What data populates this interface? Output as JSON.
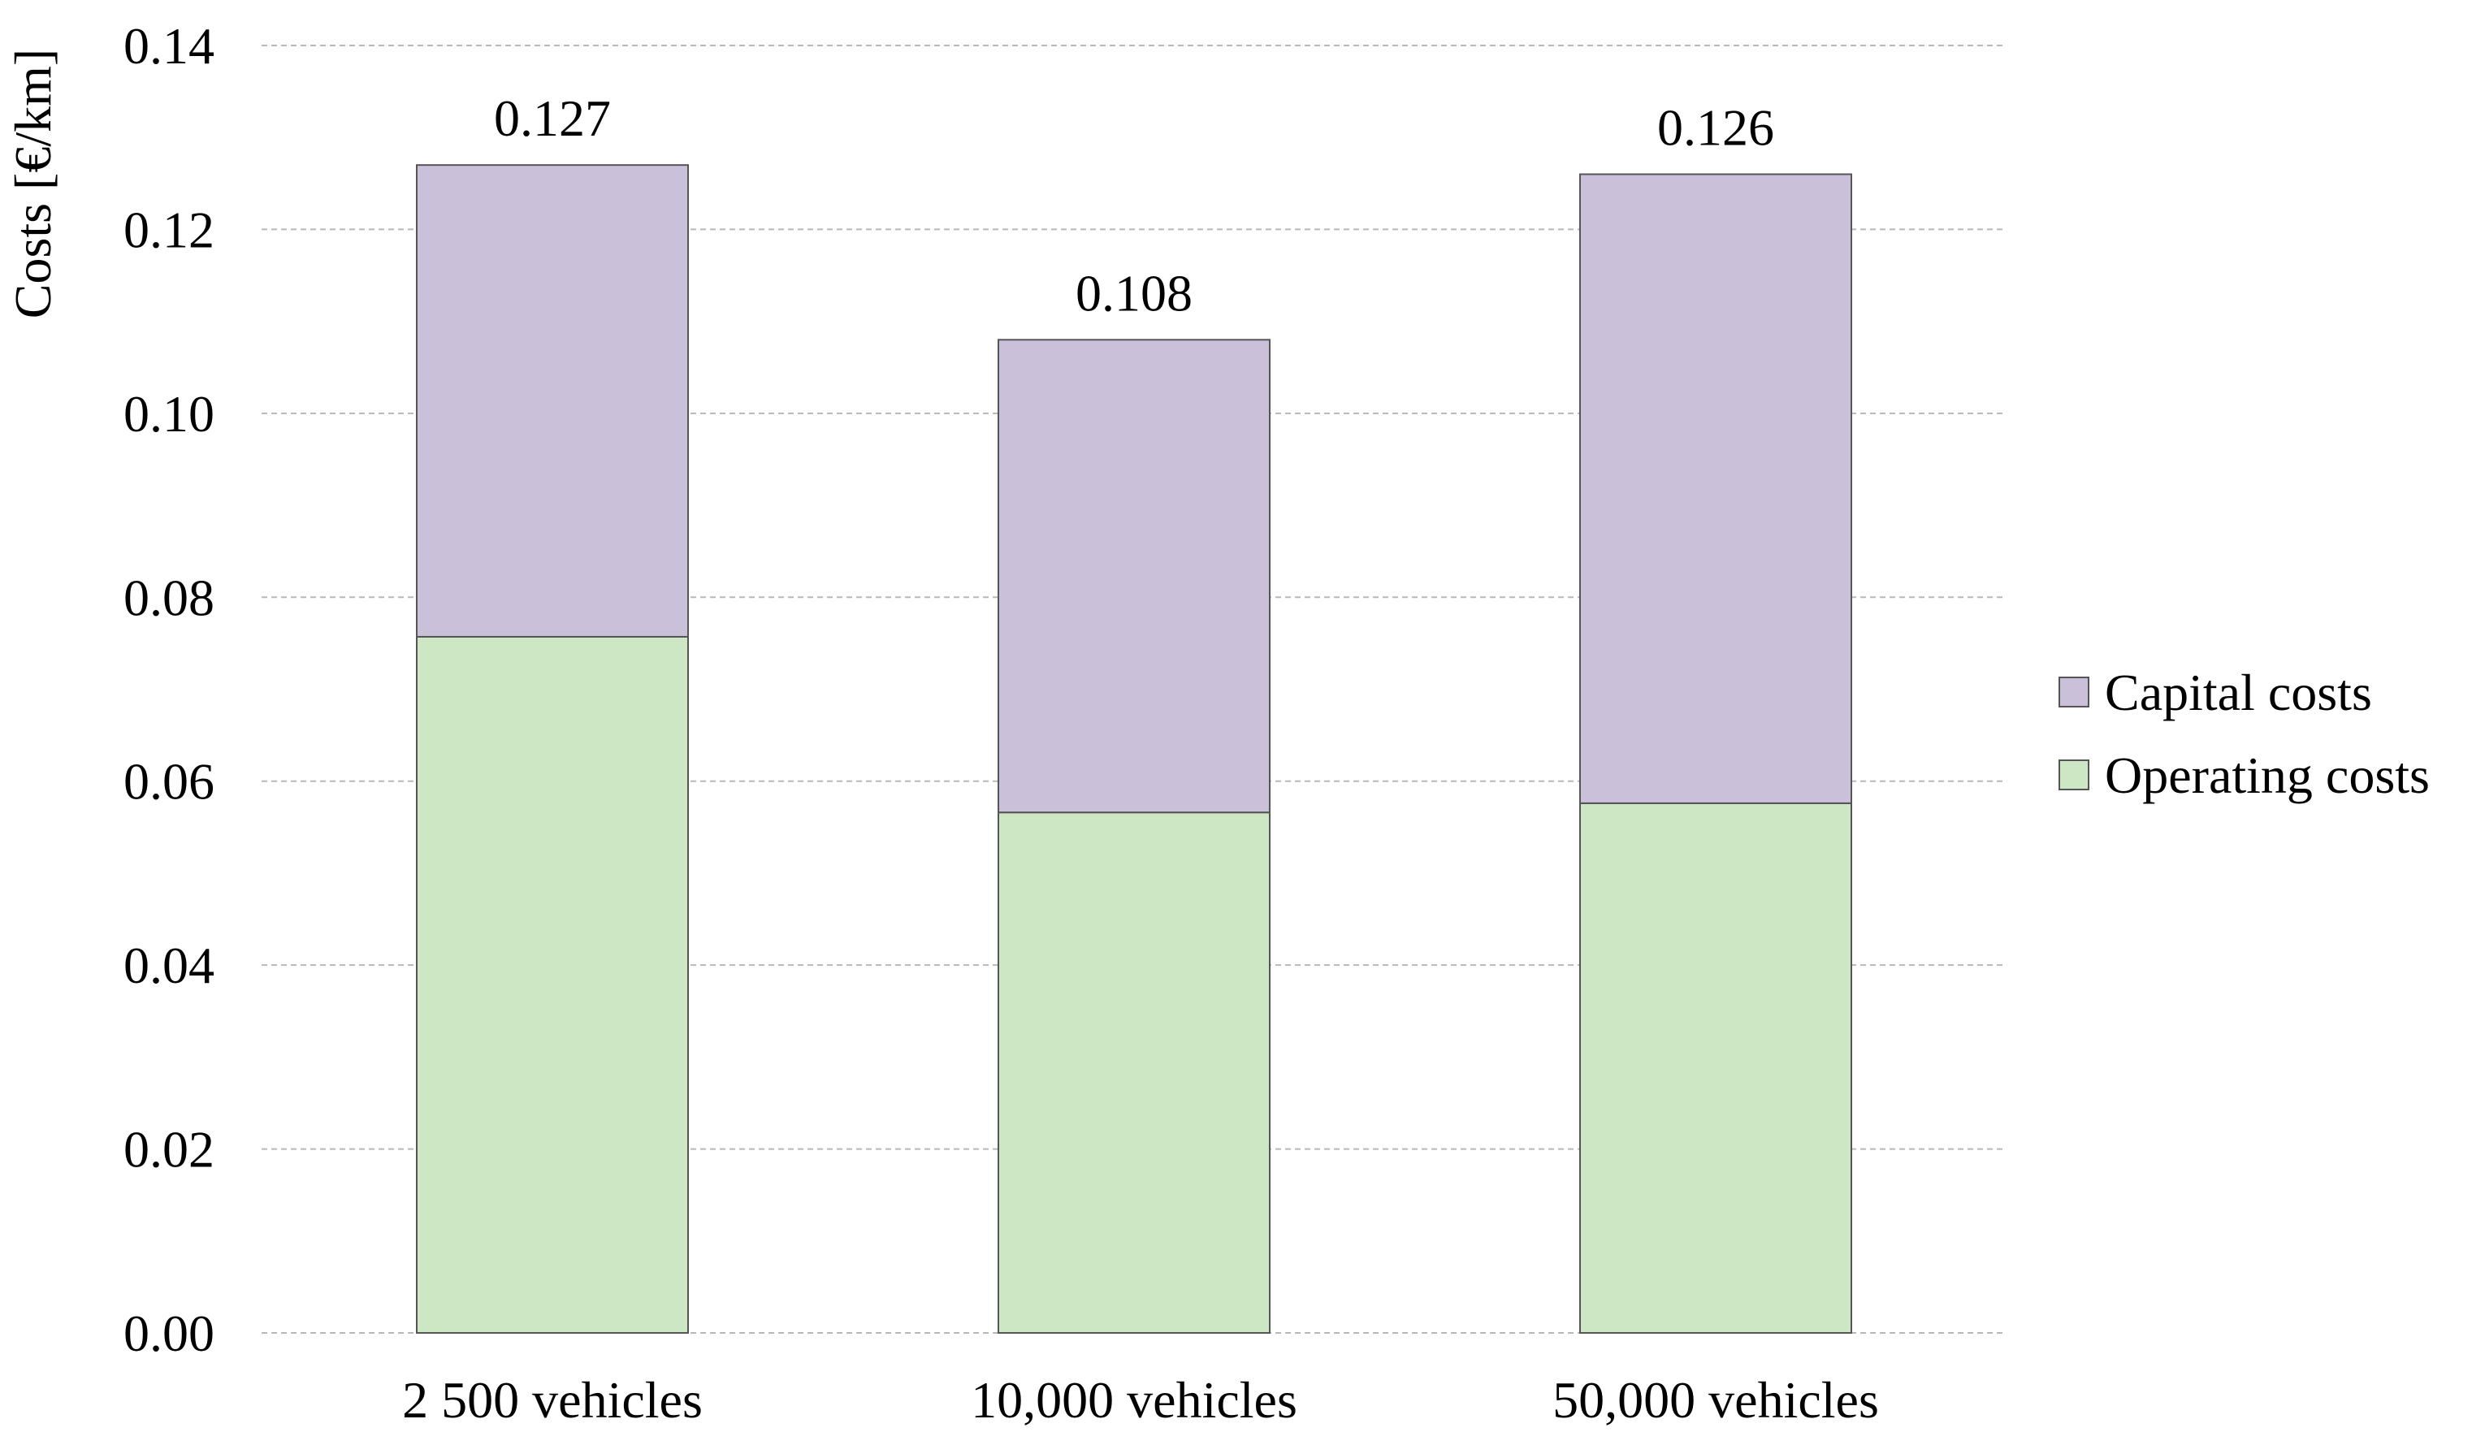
{
  "chart_data": {
    "type": "bar",
    "stacked": true,
    "title": "",
    "xlabel": "",
    "ylabel": "Costs [€/km]",
    "ylim": [
      0,
      0.14
    ],
    "yticks": [
      "0.00",
      "0.02",
      "0.04",
      "0.06",
      "0.08",
      "0.10",
      "0.12",
      "0.14"
    ],
    "grid": true,
    "legend_position": "right",
    "categories": [
      "2 500 vehicles",
      "10,000 vehicles",
      "50,000 vehicles"
    ],
    "series": [
      {
        "name": "Operating costs",
        "color": "#cde6c4",
        "values": [
          0.0757,
          0.0566,
          0.0576
        ]
      },
      {
        "name": "Capital costs",
        "color": "#cac0da",
        "values": [
          0.0513,
          0.0514,
          0.0684
        ]
      }
    ],
    "totals": [
      "0.127",
      "0.108",
      "0.126"
    ],
    "legend_order": [
      "Capital costs",
      "Operating costs"
    ],
    "edge_color": "#555555",
    "grid_color": "#b8b8b8"
  }
}
